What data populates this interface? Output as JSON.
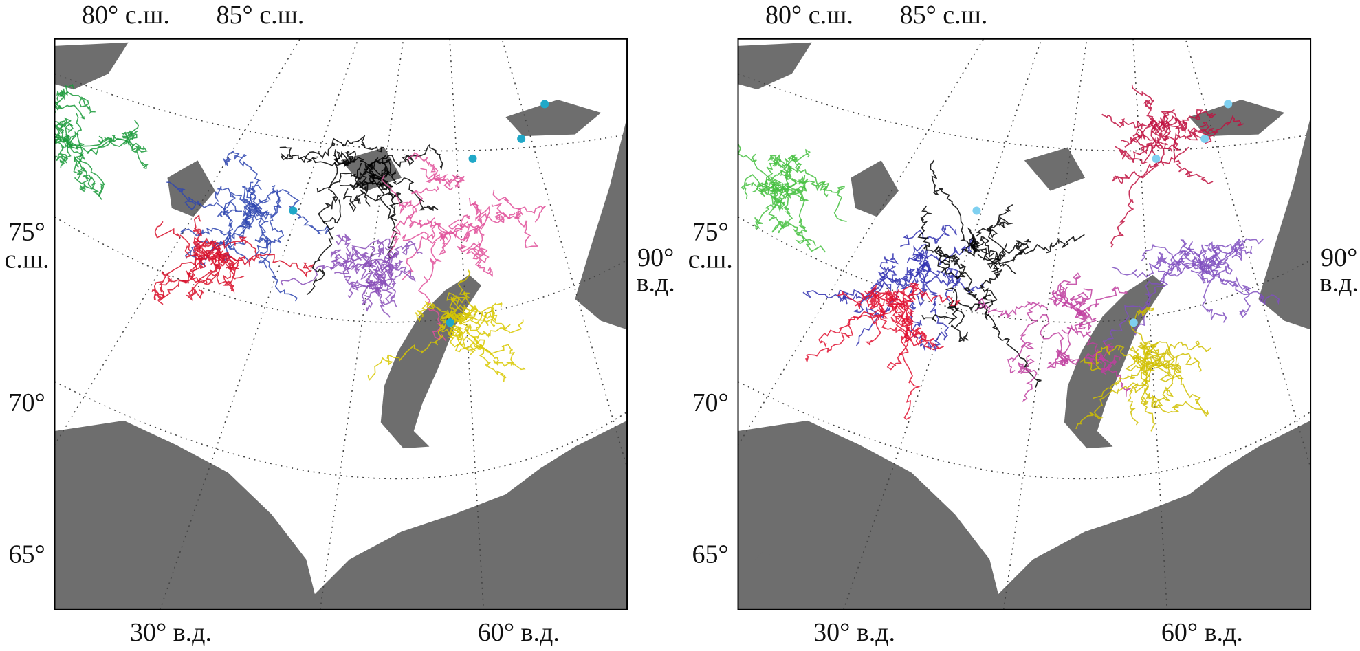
{
  "panels": [
    {
      "top": [
        "80° с.ш.",
        "85° с.ш."
      ],
      "left": [
        "75°",
        "с.ш.",
        "70°",
        "65°"
      ],
      "right": [
        "90°",
        "в.д."
      ],
      "bottom": [
        "30° в.д.",
        "60° в.д."
      ]
    },
    {
      "top": [
        "80° с.ш.",
        "85° с.ш."
      ],
      "left": [
        "75°",
        "с.ш.",
        "70°",
        "65°"
      ],
      "right": [
        "90°",
        "в.д."
      ],
      "bottom": [
        "30° в.д.",
        "60° в.д."
      ]
    }
  ]
}
